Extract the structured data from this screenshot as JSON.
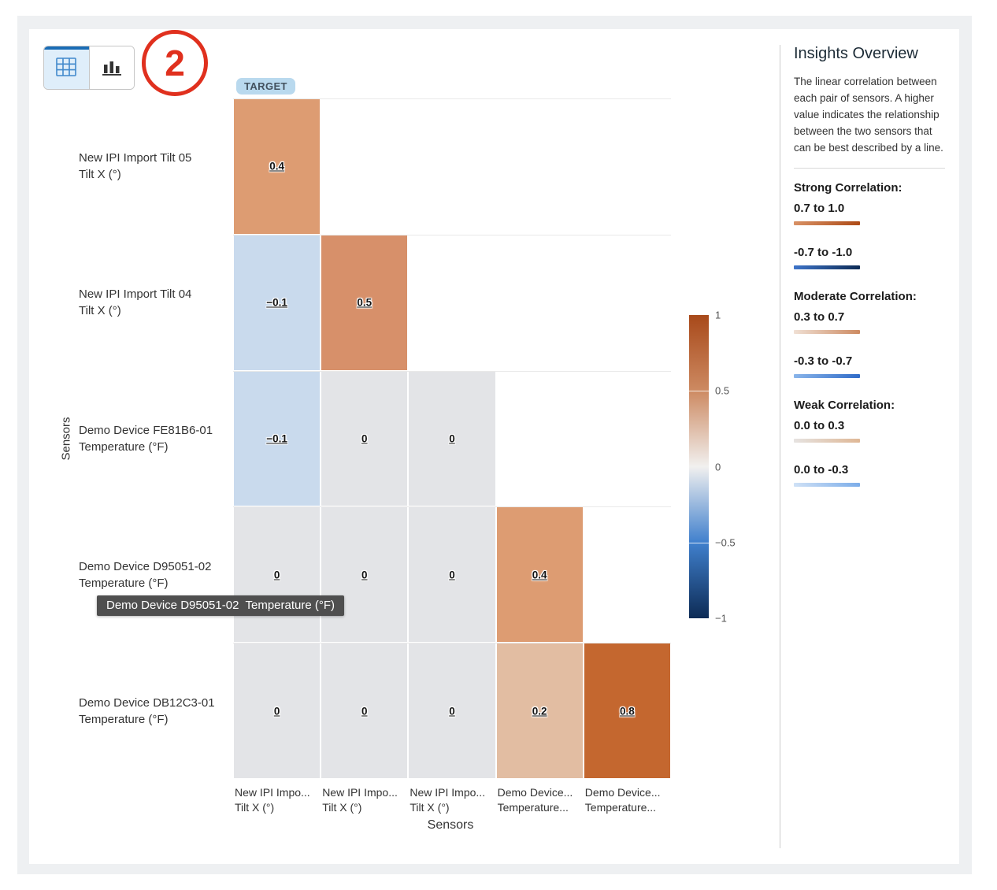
{
  "view_toggle": {
    "buttons": [
      {
        "icon": "table-grid-icon",
        "selected": true
      },
      {
        "icon": "bar-chart-icon",
        "selected": false
      }
    ]
  },
  "annotation": {
    "label": "2"
  },
  "target_badge": "TARGET",
  "tooltip": {
    "text": "Demo Device D95051-02  Temperature (°F)"
  },
  "chart_data": {
    "type": "heatmap",
    "xlabel": "Sensors",
    "ylabel": "Sensors",
    "value_range": [
      -1,
      1
    ],
    "rows": [
      {
        "label_lines": [
          "New IPI Import Tilt 05",
          "Tilt X (°)"
        ],
        "cells": [
          {
            "value": 0.4,
            "label": "0.4",
            "color": "#dd9c72"
          }
        ]
      },
      {
        "label_lines": [
          "New IPI Import Tilt 04",
          "Tilt X (°)"
        ],
        "cells": [
          {
            "value": -0.1,
            "label": "−0.1",
            "color": "#c9daed"
          },
          {
            "value": 0.5,
            "label": "0.5",
            "color": "#d7906a"
          }
        ]
      },
      {
        "label_lines": [
          "Demo Device FE81B6-01",
          "Temperature (°F)"
        ],
        "cells": [
          {
            "value": -0.1,
            "label": "−0.1",
            "color": "#c9daed"
          },
          {
            "value": 0,
            "label": "0",
            "color": "#e3e4e7"
          },
          {
            "value": 0,
            "label": "0",
            "color": "#e3e4e7"
          }
        ]
      },
      {
        "label_lines": [
          "Demo Device D95051-02",
          "Temperature (°F)"
        ],
        "cells": [
          {
            "value": 0,
            "label": "0",
            "color": "#e3e4e7"
          },
          {
            "value": 0,
            "label": "0",
            "color": "#e3e4e7"
          },
          {
            "value": 0,
            "label": "0",
            "color": "#e3e4e7"
          },
          {
            "value": 0.4,
            "label": "0.4",
            "color": "#dd9c72"
          }
        ]
      },
      {
        "label_lines": [
          "Demo Device DB12C3-01",
          "Temperature (°F)"
        ],
        "cells": [
          {
            "value": 0,
            "label": "0",
            "color": "#e3e4e7"
          },
          {
            "value": 0,
            "label": "0",
            "color": "#e3e4e7"
          },
          {
            "value": 0,
            "label": "0",
            "color": "#e3e4e7"
          },
          {
            "value": 0.2,
            "label": "0.2",
            "color": "#e2bda2"
          },
          {
            "value": 0.8,
            "label": "0.8",
            "color": "#c4672f"
          }
        ]
      }
    ],
    "col_labels": [
      [
        "New IPI Impo...",
        "Tilt X (°)"
      ],
      [
        "New IPI Impo...",
        "Tilt X (°)"
      ],
      [
        "New IPI Impo...",
        "Tilt X (°)"
      ],
      [
        "Demo Device...",
        "Temperature..."
      ],
      [
        "Demo Device...",
        "Temperature..."
      ]
    ],
    "colorbar": {
      "ticks": [
        "1",
        "0.5",
        "0",
        "−0.5",
        "−1"
      ],
      "gradient_stops": [
        "#a8491a",
        "#cd8a62",
        "#f1f0ef",
        "#4080cd",
        "#0d2b55"
      ]
    }
  },
  "insights": {
    "title": "Insights Overview",
    "description": "The linear correlation between each pair of sensors. A higher value indicates the relationship between the two sensors that can be best described by a line.",
    "legend": [
      {
        "heading": "Strong Correlation:",
        "range": "0.7 to 1.0",
        "gradient": [
          "#d89165",
          "#ad4a16"
        ]
      },
      {
        "heading": null,
        "range": "-0.7 to -1.0",
        "gradient": [
          "#3e74c9",
          "#0d2b55"
        ]
      },
      {
        "heading": "Moderate Correlation:",
        "range": "0.3 to 0.7",
        "gradient": [
          "#f0e0d4",
          "#cd8a61"
        ]
      },
      {
        "heading": null,
        "range": "-0.3 to -0.7",
        "gradient": [
          "#8ab5ea",
          "#2f6bc8"
        ]
      },
      {
        "heading": "Weak Correlation:",
        "range": "0.0 to 0.3",
        "gradient": [
          "#e6e3e1",
          "#dfb795"
        ]
      },
      {
        "heading": null,
        "range": "0.0 to -0.3",
        "gradient": [
          "#cfe1f6",
          "#7cade9"
        ]
      }
    ]
  }
}
